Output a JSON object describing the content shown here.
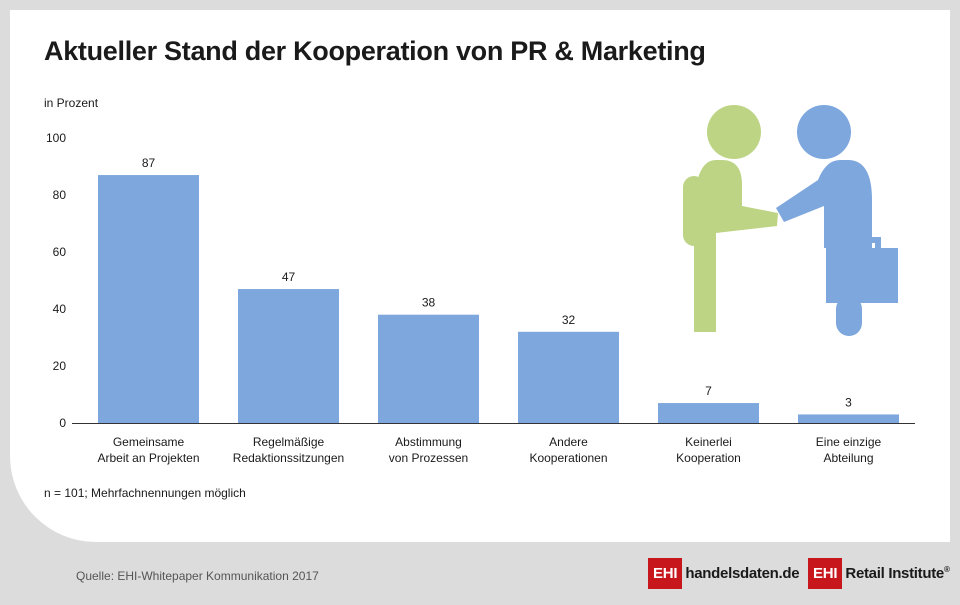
{
  "header": {
    "title": "Aktueller Stand der Kooperation von PR & Marketing",
    "unit_label": "in Prozent"
  },
  "footnote": "n = 101; Mehrfachnennungen möglich",
  "source": "Quelle: EHI-Whitepaper Kommunikation 2017",
  "logos": {
    "handelsdaten": {
      "mark": "EHI",
      "text": "handelsdaten.de"
    },
    "retail": {
      "mark": "EHI",
      "text": "Retail Institute",
      "reg": "®"
    }
  },
  "colors": {
    "bar": "#7da7dd",
    "figure_green": "#bcd483",
    "figure_blue": "#7da7dd"
  },
  "illustration": {
    "icon": "handshake-figures-icon"
  },
  "chart_data": {
    "type": "bar",
    "categories": [
      [
        "Gemeinsame",
        "Arbeit an Projekten"
      ],
      [
        "Regelmäßige",
        "Redaktionssitzungen"
      ],
      [
        "Abstimmung",
        "von Prozessen"
      ],
      [
        "Andere",
        "Kooperationen"
      ],
      [
        "Keinerlei",
        "Kooperation"
      ],
      [
        "Eine einzige",
        "Abteilung"
      ]
    ],
    "values": [
      87,
      47,
      38,
      32,
      7,
      3
    ],
    "ylabel": "in Prozent",
    "ylim": [
      0,
      100
    ],
    "yticks": [
      0,
      20,
      40,
      60,
      80,
      100
    ],
    "grid": false,
    "legend": "none"
  }
}
